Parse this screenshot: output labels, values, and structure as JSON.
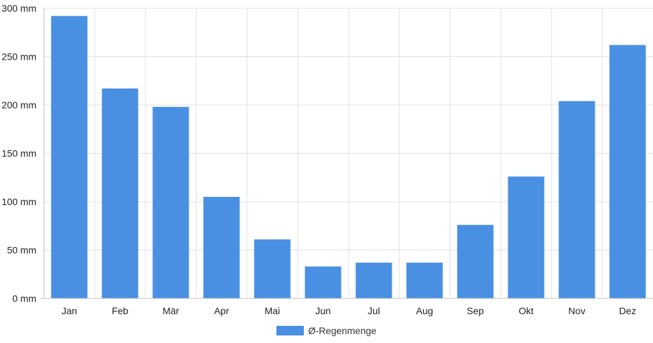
{
  "chart_data": {
    "type": "bar",
    "categories": [
      "Jan",
      "Feb",
      "Mär",
      "Apr",
      "Mai",
      "Jun",
      "Jul",
      "Aug",
      "Sep",
      "Okt",
      "Nov",
      "Dez"
    ],
    "series": [
      {
        "name": "Ø-Regenmenge",
        "values": [
          292,
          217,
          198,
          105,
          61,
          33,
          37,
          37,
          76,
          126,
          204,
          262
        ]
      }
    ],
    "y_ticks": [
      "0 mm",
      "50 mm",
      "100 mm",
      "150 mm",
      "200 mm",
      "250 mm",
      "300 mm"
    ],
    "ylim": [
      0,
      300
    ],
    "grid": true,
    "legend_position": "bottom",
    "colors": {
      "bar": "#4a90e2",
      "grid": "#e0e0e0",
      "axis": "#bfbfbf"
    }
  }
}
